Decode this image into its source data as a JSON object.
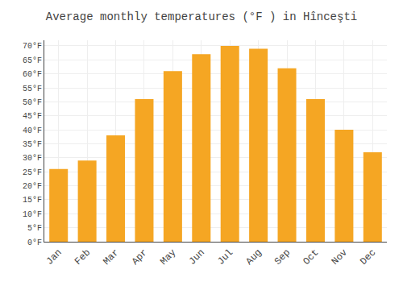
{
  "chart_data": {
    "type": "bar",
    "title": "Average monthly temperatures (°F ) in Hînceşti",
    "categories": [
      "Jan",
      "Feb",
      "Mar",
      "Apr",
      "May",
      "Jun",
      "Jul",
      "Aug",
      "Sep",
      "Oct",
      "Nov",
      "Dec"
    ],
    "values": [
      26,
      29,
      38,
      51,
      61,
      67,
      70,
      69,
      62,
      51,
      40,
      32
    ],
    "color": "#F5A623",
    "ylim": [
      0,
      72
    ],
    "yticks": [
      {
        "value": 0,
        "label": "0°F"
      },
      {
        "value": 5,
        "label": "5°F"
      },
      {
        "value": 10,
        "label": "10°F"
      },
      {
        "value": 15,
        "label": "15°F"
      },
      {
        "value": 20,
        "label": "20°F"
      },
      {
        "value": 25,
        "label": "25°F"
      },
      {
        "value": 30,
        "label": "30°F"
      },
      {
        "value": 35,
        "label": "35°F"
      },
      {
        "value": 40,
        "label": "40°F"
      },
      {
        "value": 45,
        "label": "45°F"
      },
      {
        "value": 50,
        "label": "50°F"
      },
      {
        "value": 55,
        "label": "55°F"
      },
      {
        "value": 60,
        "label": "60°F"
      },
      {
        "value": 65,
        "label": "65°F"
      },
      {
        "value": 70,
        "label": "70°F"
      }
    ],
    "grid": true
  }
}
